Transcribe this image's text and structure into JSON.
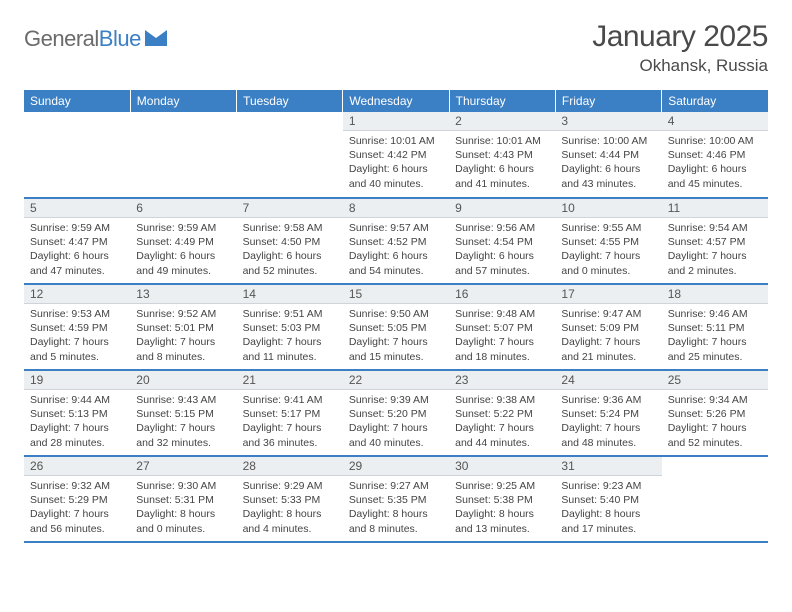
{
  "brand": {
    "part1": "General",
    "part2": "Blue"
  },
  "title": "January 2025",
  "location": "Okhansk, Russia",
  "colors": {
    "header_bg": "#3b7fc4",
    "header_text": "#ffffff",
    "daynum_bg": "#eceff1",
    "body_text": "#444444",
    "rule": "#3b7fc4"
  },
  "weekdays": [
    "Sunday",
    "Monday",
    "Tuesday",
    "Wednesday",
    "Thursday",
    "Friday",
    "Saturday"
  ],
  "layout": {
    "rows": 5,
    "cols": 7,
    "first_weekday_index": 3,
    "days_in_month": 31
  },
  "days": {
    "1": {
      "sunrise": "10:01 AM",
      "sunset": "4:42 PM",
      "day_h": 6,
      "day_m": 40
    },
    "2": {
      "sunrise": "10:01 AM",
      "sunset": "4:43 PM",
      "day_h": 6,
      "day_m": 41
    },
    "3": {
      "sunrise": "10:00 AM",
      "sunset": "4:44 PM",
      "day_h": 6,
      "day_m": 43
    },
    "4": {
      "sunrise": "10:00 AM",
      "sunset": "4:46 PM",
      "day_h": 6,
      "day_m": 45
    },
    "5": {
      "sunrise": "9:59 AM",
      "sunset": "4:47 PM",
      "day_h": 6,
      "day_m": 47
    },
    "6": {
      "sunrise": "9:59 AM",
      "sunset": "4:49 PM",
      "day_h": 6,
      "day_m": 49
    },
    "7": {
      "sunrise": "9:58 AM",
      "sunset": "4:50 PM",
      "day_h": 6,
      "day_m": 52
    },
    "8": {
      "sunrise": "9:57 AM",
      "sunset": "4:52 PM",
      "day_h": 6,
      "day_m": 54
    },
    "9": {
      "sunrise": "9:56 AM",
      "sunset": "4:54 PM",
      "day_h": 6,
      "day_m": 57
    },
    "10": {
      "sunrise": "9:55 AM",
      "sunset": "4:55 PM",
      "day_h": 7,
      "day_m": 0
    },
    "11": {
      "sunrise": "9:54 AM",
      "sunset": "4:57 PM",
      "day_h": 7,
      "day_m": 2
    },
    "12": {
      "sunrise": "9:53 AM",
      "sunset": "4:59 PM",
      "day_h": 7,
      "day_m": 5
    },
    "13": {
      "sunrise": "9:52 AM",
      "sunset": "5:01 PM",
      "day_h": 7,
      "day_m": 8
    },
    "14": {
      "sunrise": "9:51 AM",
      "sunset": "5:03 PM",
      "day_h": 7,
      "day_m": 11
    },
    "15": {
      "sunrise": "9:50 AM",
      "sunset": "5:05 PM",
      "day_h": 7,
      "day_m": 15
    },
    "16": {
      "sunrise": "9:48 AM",
      "sunset": "5:07 PM",
      "day_h": 7,
      "day_m": 18
    },
    "17": {
      "sunrise": "9:47 AM",
      "sunset": "5:09 PM",
      "day_h": 7,
      "day_m": 21
    },
    "18": {
      "sunrise": "9:46 AM",
      "sunset": "5:11 PM",
      "day_h": 7,
      "day_m": 25
    },
    "19": {
      "sunrise": "9:44 AM",
      "sunset": "5:13 PM",
      "day_h": 7,
      "day_m": 28
    },
    "20": {
      "sunrise": "9:43 AM",
      "sunset": "5:15 PM",
      "day_h": 7,
      "day_m": 32
    },
    "21": {
      "sunrise": "9:41 AM",
      "sunset": "5:17 PM",
      "day_h": 7,
      "day_m": 36
    },
    "22": {
      "sunrise": "9:39 AM",
      "sunset": "5:20 PM",
      "day_h": 7,
      "day_m": 40
    },
    "23": {
      "sunrise": "9:38 AM",
      "sunset": "5:22 PM",
      "day_h": 7,
      "day_m": 44
    },
    "24": {
      "sunrise": "9:36 AM",
      "sunset": "5:24 PM",
      "day_h": 7,
      "day_m": 48
    },
    "25": {
      "sunrise": "9:34 AM",
      "sunset": "5:26 PM",
      "day_h": 7,
      "day_m": 52
    },
    "26": {
      "sunrise": "9:32 AM",
      "sunset": "5:29 PM",
      "day_h": 7,
      "day_m": 56
    },
    "27": {
      "sunrise": "9:30 AM",
      "sunset": "5:31 PM",
      "day_h": 8,
      "day_m": 0
    },
    "28": {
      "sunrise": "9:29 AM",
      "sunset": "5:33 PM",
      "day_h": 8,
      "day_m": 4
    },
    "29": {
      "sunrise": "9:27 AM",
      "sunset": "5:35 PM",
      "day_h": 8,
      "day_m": 8
    },
    "30": {
      "sunrise": "9:25 AM",
      "sunset": "5:38 PM",
      "day_h": 8,
      "day_m": 13
    },
    "31": {
      "sunrise": "9:23 AM",
      "sunset": "5:40 PM",
      "day_h": 8,
      "day_m": 17
    }
  },
  "labels": {
    "sunrise": "Sunrise: ",
    "sunset": "Sunset: ",
    "daylight": "Daylight: ",
    "hours": " hours",
    "and": "and ",
    "minutes": " minutes."
  }
}
